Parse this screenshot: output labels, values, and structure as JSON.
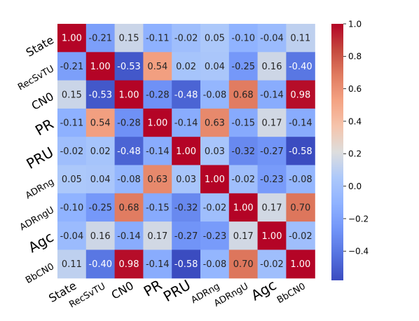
{
  "chart_data": {
    "type": "heatmap",
    "title": "",
    "xlabel": "",
    "ylabel": "",
    "row_labels": [
      "State",
      "RecSvTU",
      "CN0",
      "PR",
      "PRU",
      "ADRng",
      "ADRngU",
      "Agc",
      "BbCN0"
    ],
    "col_labels": [
      "State",
      "RecSvTU",
      "CN0",
      "PR",
      "PRU",
      "ADRng",
      "ADRngU",
      "Agc",
      "BbCN0"
    ],
    "values": [
      [
        1.0,
        -0.21,
        0.15,
        -0.11,
        -0.02,
        0.05,
        -0.1,
        -0.04,
        0.11
      ],
      [
        -0.21,
        1.0,
        -0.53,
        0.54,
        0.02,
        0.04,
        -0.25,
        0.16,
        -0.4
      ],
      [
        0.15,
        -0.53,
        1.0,
        -0.28,
        -0.48,
        -0.08,
        0.68,
        -0.14,
        0.98
      ],
      [
        -0.11,
        0.54,
        -0.28,
        1.0,
        -0.14,
        0.63,
        -0.15,
        0.17,
        -0.14
      ],
      [
        -0.02,
        0.02,
        -0.48,
        -0.14,
        1.0,
        0.03,
        -0.32,
        -0.27,
        -0.58
      ],
      [
        0.05,
        0.04,
        -0.08,
        0.63,
        0.03,
        1.0,
        -0.02,
        -0.23,
        -0.08
      ],
      [
        -0.1,
        -0.25,
        0.68,
        -0.15,
        -0.32,
        -0.02,
        1.0,
        0.17,
        0.7
      ],
      [
        -0.04,
        0.16,
        -0.14,
        0.17,
        -0.27,
        -0.23,
        0.17,
        1.0,
        -0.02
      ],
      [
        0.11,
        -0.4,
        0.98,
        -0.14,
        -0.58,
        -0.08,
        0.7,
        -0.02,
        1.0
      ]
    ],
    "annotations_decimals": 2,
    "colormap": "coolwarm",
    "color_range": [
      -0.58,
      1.0
    ],
    "colorbar": {
      "ticks": [
        1.0,
        0.8,
        0.6,
        0.4,
        0.2,
        0.0,
        -0.2,
        -0.4
      ],
      "tick_labels": [
        "1.0",
        "0.8",
        "0.6",
        "0.4",
        "0.2",
        "0.0",
        "−0.2",
        "−0.4"
      ],
      "placement": "right"
    },
    "tick_label_emphasis": {
      "large": [
        "PR",
        "PRU",
        "Agc"
      ],
      "small": [
        "RecSvTU",
        "ADRng",
        "ADRngU",
        "BbCN0"
      ]
    },
    "grid": false
  }
}
